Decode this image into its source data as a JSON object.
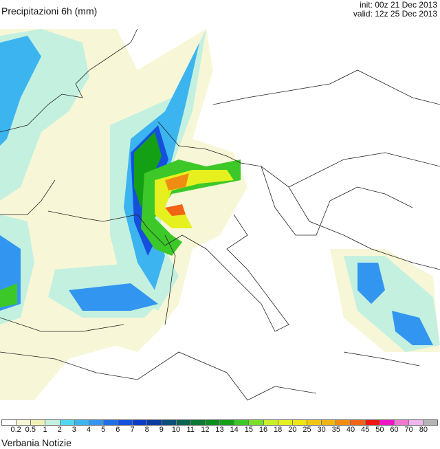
{
  "header": {
    "title": "Precipitazioni 6h (mm)",
    "init": "init: 00z 21 Dec 2013",
    "valid": "valid: 12z 25 Dec 2013"
  },
  "legend": {
    "colors": [
      "#ffffff",
      "#f7f7d8",
      "#f0f0b4",
      "#c4f0e0",
      "#50d8f0",
      "#3cb4f0",
      "#3296f0",
      "#1e6ee6",
      "#1450dc",
      "#0a3cc8",
      "#0a3ca0",
      "#0a5078",
      "#0a6450",
      "#0a7832",
      "#0a8c1e",
      "#14a014",
      "#3cc828",
      "#78e028",
      "#c8f028",
      "#e6f01e",
      "#f0e614",
      "#f0c814",
      "#f0b414",
      "#f08c14",
      "#f06414",
      "#f01414",
      "#f014c8",
      "#f078d2",
      "#f0b4f0",
      "#b4b4b4"
    ],
    "labels": [
      "0.2",
      "0.5",
      "1",
      "2",
      "3",
      "4",
      "5",
      "6",
      "7",
      "8",
      "9",
      "10",
      "11",
      "12",
      "13",
      "14",
      "15",
      "16",
      "18",
      "20",
      "25",
      "30",
      "35",
      "40",
      "45",
      "50",
      "60",
      "70",
      "80"
    ]
  },
  "credit": "Verbania Notizie"
}
